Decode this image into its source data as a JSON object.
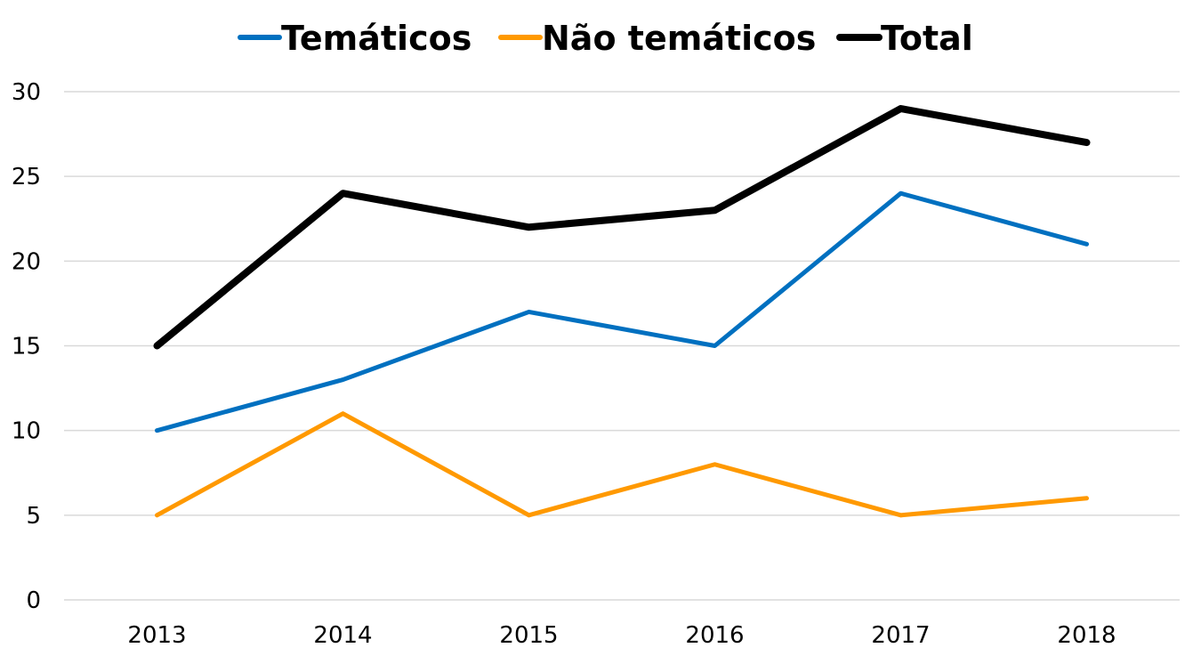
{
  "chart_data": {
    "type": "line",
    "title": "",
    "xlabel": "",
    "ylabel": "",
    "categories": [
      "2013",
      "2014",
      "2015",
      "2016",
      "2017",
      "2018"
    ],
    "ylim": [
      0,
      30
    ],
    "yticks": [
      0,
      5,
      10,
      15,
      20,
      25,
      30
    ],
    "grid": true,
    "legend_position": "top",
    "series": [
      {
        "name": "Temáticos",
        "color": "#0070C0",
        "values": [
          10,
          13,
          17,
          15,
          24,
          21
        ]
      },
      {
        "name": "Não temáticos",
        "color": "#FF9900",
        "values": [
          5,
          11,
          5,
          8,
          5,
          6
        ]
      },
      {
        "name": "Total",
        "color": "#000000",
        "values": [
          15,
          24,
          22,
          23,
          29,
          27
        ]
      }
    ]
  }
}
